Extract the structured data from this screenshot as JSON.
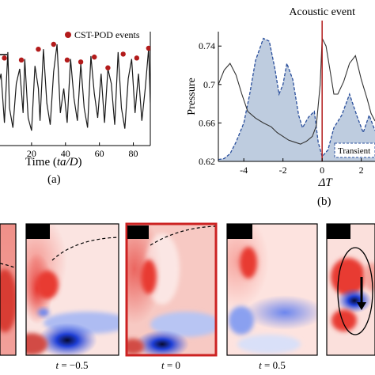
{
  "chart_data": [
    {
      "type": "line",
      "panel_label": "(a)",
      "xlabel": "Time (ta/D)",
      "x_ticks": [
        "20",
        "40",
        "60",
        "80"
      ],
      "xlim": [
        0,
        90
      ],
      "legend": {
        "label": "CST-POD events",
        "color": "#b31b1b",
        "placement": "top-right"
      },
      "series": [
        {
          "style": "line",
          "color": "#1a1a1a",
          "x": [
            0,
            2,
            4,
            6,
            7,
            9,
            11,
            13,
            15,
            16,
            18,
            20,
            22,
            24,
            25,
            27,
            29,
            31,
            33,
            35,
            37,
            39,
            41,
            43,
            45,
            47,
            49,
            51,
            53,
            55,
            57,
            59,
            61,
            63,
            65,
            67,
            69,
            71,
            73,
            75,
            77,
            79,
            81,
            83,
            85,
            87,
            89,
            90
          ],
          "y": [
            0.55,
            0.7,
            0.2,
            0.92,
            0.35,
            0.15,
            0.6,
            0.75,
            0.3,
            0.85,
            0.25,
            0.12,
            0.78,
            0.55,
            0.22,
            0.95,
            0.4,
            0.18,
            0.72,
            1.0,
            0.3,
            0.55,
            0.2,
            0.85,
            0.45,
            0.22,
            0.8,
            0.35,
            0.15,
            0.88,
            0.5,
            0.25,
            0.7,
            0.2,
            0.75,
            0.6,
            0.18,
            0.92,
            0.35,
            0.14,
            0.65,
            0.85,
            0.3,
            0.7,
            0.22,
            0.55,
            0.96,
            0.4
          ]
        },
        {
          "style": "markers",
          "color": "#b31b1b",
          "x": [
            4,
            14,
            24,
            33,
            41,
            49,
            57,
            65,
            74,
            82,
            89
          ],
          "y": [
            0.86,
            0.84,
            0.95,
            1.0,
            0.84,
            0.82,
            0.87,
            0.76,
            0.9,
            0.86,
            0.96
          ]
        }
      ]
    },
    {
      "type": "line",
      "panel_label": "(b)",
      "title": "Acoustic event",
      "xlabel": "ΔT",
      "ylabel": "Pressure",
      "x_ticks": [
        "-4",
        "-2",
        "0",
        "2"
      ],
      "y_ticks": [
        "0.62",
        "0.66",
        "0.7",
        "0.74"
      ],
      "xlim": [
        -5.3,
        2.7
      ],
      "ylim": [
        0.62,
        0.755
      ],
      "event_line_x": 0,
      "annotation": "Transient",
      "series": [
        {
          "style": "line",
          "color": "#333333",
          "x": [
            -5.3,
            -5,
            -4.7,
            -4.4,
            -4.1,
            -3.8,
            -3.4,
            -3.0,
            -2.6,
            -2.3,
            -2.0,
            -1.7,
            -1.4,
            -1.1,
            -0.8,
            -0.5,
            -0.3,
            -0.1,
            0,
            0.2,
            0.4,
            0.6,
            0.8,
            1.1,
            1.4,
            1.7,
            2.0,
            2.3,
            2.5,
            2.7
          ],
          "y": [
            0.7,
            0.715,
            0.722,
            0.71,
            0.69,
            0.672,
            0.665,
            0.66,
            0.656,
            0.65,
            0.646,
            0.642,
            0.64,
            0.638,
            0.641,
            0.646,
            0.657,
            0.7,
            0.748,
            0.74,
            0.715,
            0.69,
            0.69,
            0.703,
            0.722,
            0.73,
            0.705,
            0.685,
            0.67,
            0.662
          ]
        },
        {
          "style": "filled-dashed",
          "color": "#2a4f9c",
          "fill": "#b7c6dc",
          "x": [
            -5.3,
            -5,
            -4.7,
            -4.4,
            -4.0,
            -3.7,
            -3.4,
            -3.0,
            -2.7,
            -2.4,
            -2.2,
            -2.0,
            -1.8,
            -1.5,
            -1.2,
            -1.0,
            -0.7,
            -0.4,
            -0.2,
            0,
            0.3,
            0.6,
            1.0,
            1.4,
            1.8,
            2.1,
            2.4,
            2.7
          ],
          "y": [
            0.622,
            0.623,
            0.628,
            0.64,
            0.66,
            0.69,
            0.725,
            0.748,
            0.745,
            0.715,
            0.69,
            0.7,
            0.722,
            0.705,
            0.668,
            0.655,
            0.666,
            0.672,
            0.64,
            0.625,
            0.632,
            0.655,
            0.668,
            0.69,
            0.666,
            0.65,
            0.668,
            0.652
          ]
        }
      ]
    }
  ],
  "snapshots": [
    {
      "label": "",
      "highlighted": false
    },
    {
      "label": "t = −0.5",
      "highlighted": false
    },
    {
      "label": "t = 0",
      "highlighted": true
    },
    {
      "label": "t = 0.5",
      "highlighted": false
    },
    {
      "label": "",
      "highlighted": false
    }
  ],
  "colors": {
    "red": "#e23a36",
    "blue": "#1f3fd6",
    "highlight_border": "#cc2222",
    "event_line": "#b31b1b"
  }
}
